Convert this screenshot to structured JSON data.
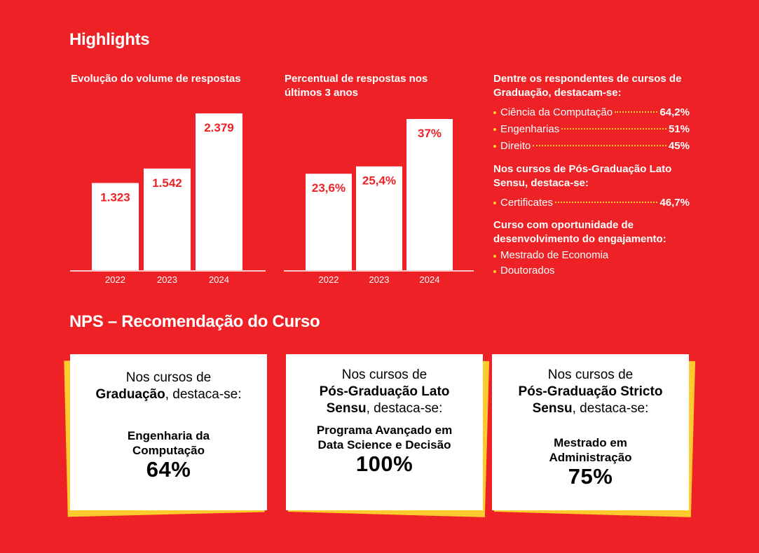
{
  "highlights_title": "Highlights",
  "chart_data": [
    {
      "type": "bar",
      "title": "Evolução do volume de respostas",
      "categories": [
        "2022",
        "2023",
        "2024"
      ],
      "values": [
        1323,
        1542,
        2379
      ],
      "value_labels": [
        "1.323",
        "1.542",
        "2.379"
      ],
      "ylim": [
        0,
        2379
      ],
      "grid": false,
      "bar_color": "#FFFFFF",
      "label_color": "#EE2226"
    },
    {
      "type": "bar",
      "title": "Percentual de respostas nos últimos 3 anos",
      "categories": [
        "2022",
        "2023",
        "2024"
      ],
      "values": [
        23.6,
        25.4,
        37
      ],
      "value_labels": [
        "23,6%",
        "25,4%",
        "37%"
      ],
      "ylim": [
        0,
        37
      ],
      "grid": false,
      "bar_color": "#FFFFFF",
      "label_color": "#EE2226"
    }
  ],
  "side": {
    "grad_title": "Dentre os respondentes de cursos de Graduação, destacam-se:",
    "grad_items": [
      {
        "label": "Ciência da Computação",
        "value": "64,2%"
      },
      {
        "label": "Engenharias",
        "value": "51%"
      },
      {
        "label": "Direito",
        "value": "45%"
      }
    ],
    "pos_title": "Nos cursos de Pós-Graduação Lato Sensu, destaca-se:",
    "pos_items": [
      {
        "label": "Certificates",
        "value": "46,7%"
      }
    ],
    "opp_title": "Curso com oportunidade de desenvolvimento do engajamento:",
    "opp_items": [
      "Mestrado de Economia",
      "Doutorados"
    ]
  },
  "nps": {
    "title": "NPS – Recomendação do Curso",
    "cards": [
      {
        "intro_pre": "Nos cursos de",
        "intro_bold": "Graduação",
        "intro_post": ", destaca-se:",
        "course": "Engenharia da Computação",
        "value": "64%"
      },
      {
        "intro_pre": "Nos cursos de",
        "intro_bold": "Pós-Graduação Lato Sensu",
        "intro_post": ", destaca-se:",
        "course": "Programa Avançado em Data Science e Decisão",
        "value": "100%"
      },
      {
        "intro_pre": "Nos cursos de",
        "intro_bold": "Pós-Graduação Stricto Sensu",
        "intro_post": ", destaca-se:",
        "course": "Mestrado em Administração",
        "value": "75%"
      }
    ]
  },
  "colors": {
    "background": "#EE2226",
    "accent": "#FFD12A",
    "card_shadow": "#FDCB2E"
  }
}
